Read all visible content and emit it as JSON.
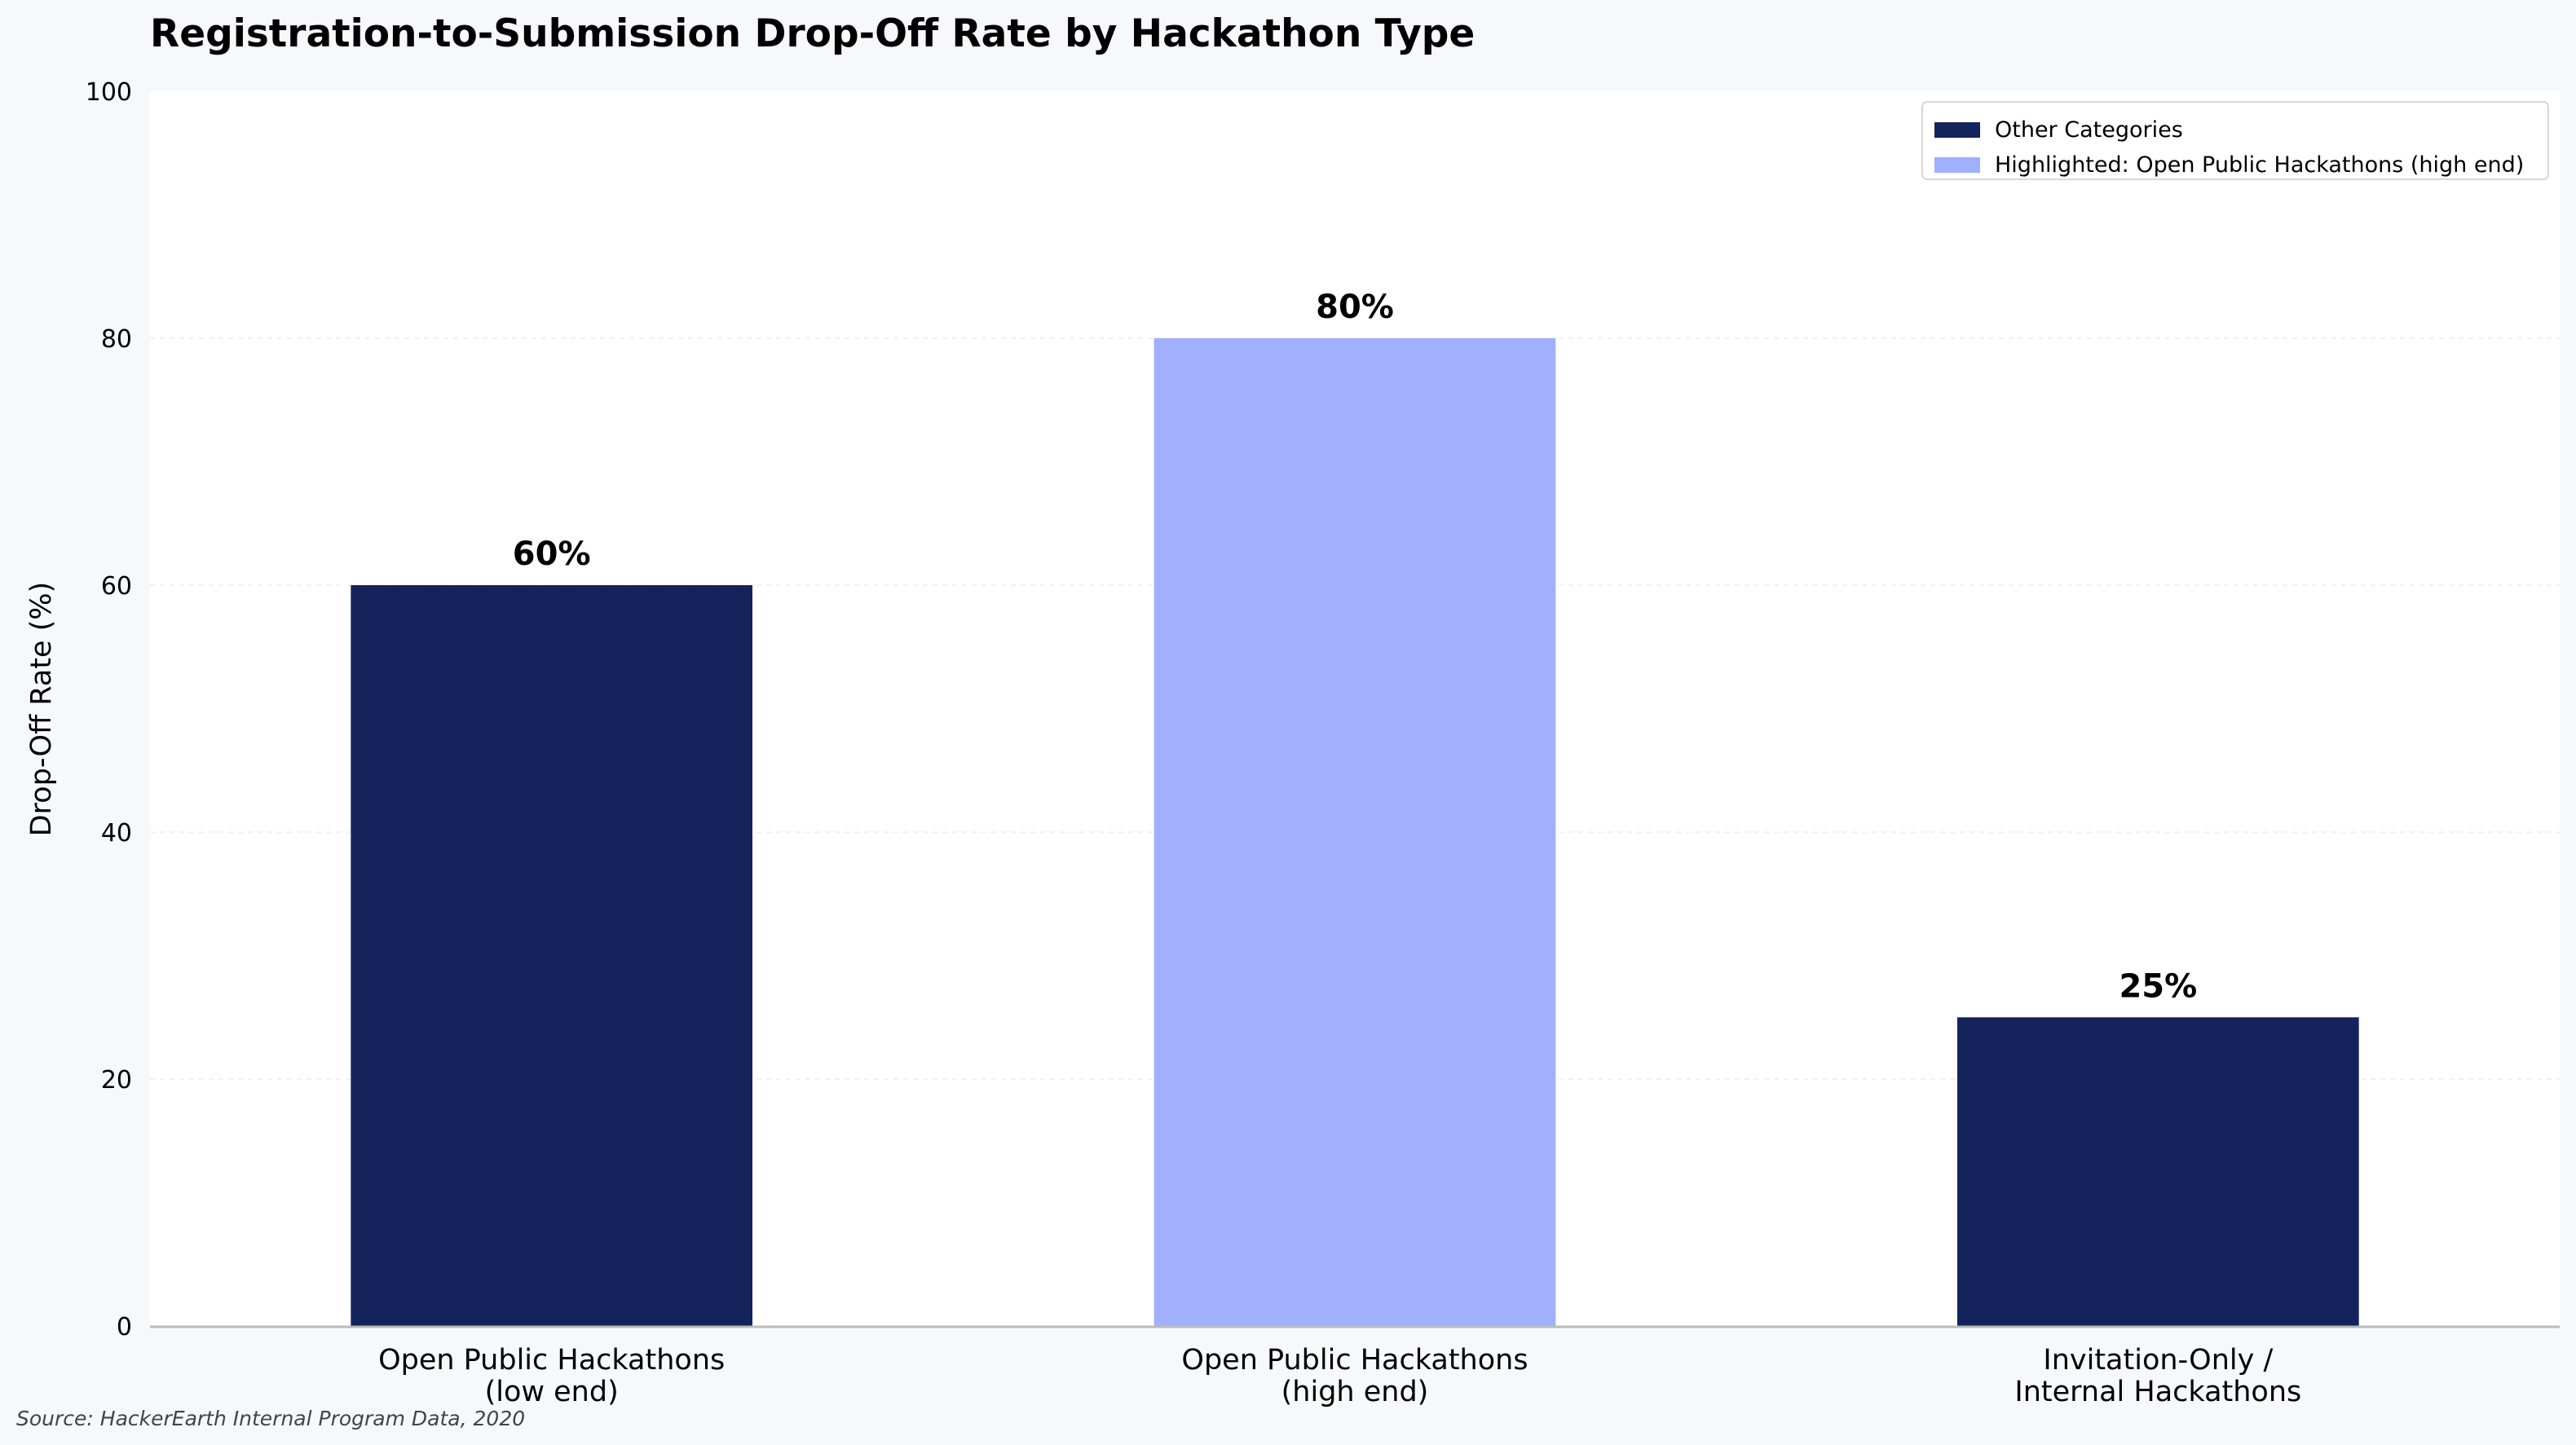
{
  "chart_data": {
    "type": "bar",
    "title": "Registration-to-Submission Drop-Off Rate by Hackathon Type",
    "xlabel": "",
    "ylabel": "Drop-Off Rate (%)",
    "ylim": [
      0,
      100
    ],
    "yticks": [
      "0",
      "20",
      "40",
      "60",
      "80",
      "100"
    ],
    "grid": true,
    "legend_position": "top-right",
    "categories": [
      [
        "Open Public Hackathons",
        "(low end)"
      ],
      [
        "Open Public Hackathons",
        "(high end)"
      ],
      [
        "Invitation-Only /",
        "Internal Hackathons"
      ]
    ],
    "values": [
      60,
      80,
      25
    ],
    "value_labels": [
      "60%",
      "80%",
      "25%"
    ],
    "highlighted": [
      false,
      true,
      false
    ],
    "legend": [
      {
        "label": "Other Categories",
        "color": "#15235c"
      },
      {
        "label": "Highlighted: Open Public Hackathons (high end)",
        "color": "#a0b0fd"
      }
    ],
    "colors": {
      "default": "#15235c",
      "highlight": "#a0b0fd"
    },
    "source": "Source: HackerEarth Internal Program Data, 2020"
  }
}
